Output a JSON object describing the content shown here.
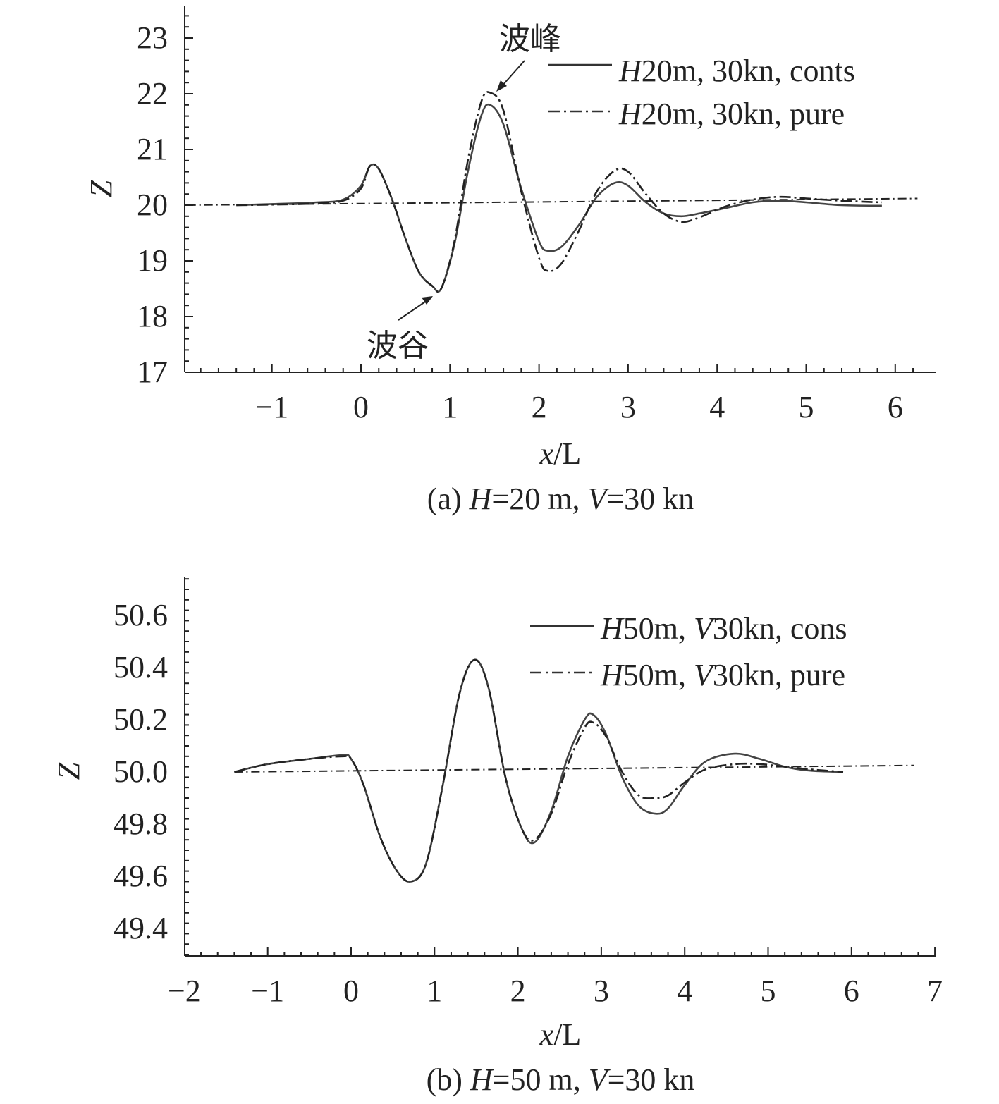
{
  "chart_data": [
    {
      "type": "line",
      "caption": "(a) H=20 m, V=30 kn",
      "caption_prefix": "(a) ",
      "caption_var1": "H",
      "caption_mid": "=20 m, ",
      "caption_var2": "V",
      "caption_suffix": "=30 kn",
      "xlabel_var": "x",
      "xlabel_rest": "/L",
      "ylabel": "Z",
      "xlim": [
        -2,
        6.3
      ],
      "ylim": [
        17,
        23.5
      ],
      "xticks": [
        -1,
        0,
        1,
        2,
        3,
        4,
        5,
        6
      ],
      "xtick_labels": [
        "−1",
        "0",
        "1",
        "2",
        "3",
        "4",
        "5",
        "6"
      ],
      "yticks": [
        17,
        18,
        19,
        20,
        21,
        22,
        23
      ],
      "ytick_labels": [
        "17",
        "18",
        "19",
        "20",
        "21",
        "22",
        "23"
      ],
      "legend": [
        {
          "var": "H",
          "rest": "20m, 30kn, conts",
          "style": "solid"
        },
        {
          "var": "H",
          "rest": "20m, 30kn, pure",
          "style": "dashdot"
        }
      ],
      "annotations": [
        {
          "text": "波峰",
          "x": 1.5,
          "y": 22.05
        },
        {
          "text": "波谷",
          "x": 0.8,
          "y": 18.4
        }
      ],
      "reference_line": {
        "x": [
          -1.95,
          6.25
        ],
        "y": [
          20.0,
          20.12
        ]
      },
      "series": [
        {
          "name": "H20m, 30kn, conts",
          "style": "solid",
          "x": [
            -1.4,
            -1.0,
            -0.5,
            -0.2,
            0.0,
            0.1,
            0.2,
            0.35,
            0.5,
            0.65,
            0.8,
            0.9,
            1.05,
            1.2,
            1.35,
            1.45,
            1.6,
            1.8,
            2.0,
            2.1,
            2.25,
            2.45,
            2.65,
            2.85,
            3.0,
            3.2,
            3.4,
            3.6,
            3.8,
            4.1,
            4.4,
            4.7,
            5.0,
            5.4,
            5.85
          ],
          "values": [
            20.0,
            20.02,
            20.05,
            20.1,
            20.35,
            20.7,
            20.65,
            20.1,
            19.4,
            18.8,
            18.55,
            18.5,
            19.3,
            20.6,
            21.6,
            21.8,
            21.45,
            20.3,
            19.35,
            19.18,
            19.25,
            19.65,
            20.15,
            20.4,
            20.35,
            20.05,
            19.85,
            19.8,
            19.85,
            19.95,
            20.05,
            20.08,
            20.05,
            20.0,
            19.99
          ]
        },
        {
          "name": "H20m, 30kn, pure",
          "style": "dashdot",
          "x": [
            -1.4,
            -1.0,
            -0.5,
            -0.2,
            0.0,
            0.1,
            0.2,
            0.35,
            0.5,
            0.65,
            0.8,
            0.9,
            1.05,
            1.2,
            1.35,
            1.45,
            1.6,
            1.8,
            2.0,
            2.1,
            2.25,
            2.45,
            2.65,
            2.85,
            3.0,
            3.2,
            3.4,
            3.6,
            3.8,
            4.1,
            4.4,
            4.7,
            5.0,
            5.4,
            5.85
          ],
          "values": [
            20.0,
            20.01,
            20.03,
            20.08,
            20.3,
            20.7,
            20.65,
            20.1,
            19.4,
            18.8,
            18.55,
            18.5,
            19.35,
            20.8,
            21.85,
            22.02,
            21.7,
            20.25,
            19.05,
            18.82,
            18.95,
            19.55,
            20.25,
            20.62,
            20.6,
            20.2,
            19.85,
            19.7,
            19.78,
            19.98,
            20.1,
            20.15,
            20.12,
            20.08,
            20.05
          ]
        }
      ]
    },
    {
      "type": "line",
      "caption": "(b) H=50 m, V=30 kn",
      "caption_prefix": "(b) ",
      "caption_var1": "H",
      "caption_mid": "=50 m, ",
      "caption_var2": "V",
      "caption_suffix": "=30 kn",
      "xlabel_var": "x",
      "xlabel_rest": "/L",
      "ylabel": "Z",
      "xlim": [
        -2,
        7
      ],
      "ylim": [
        49.3,
        50.75
      ],
      "xticks": [
        -2,
        -1,
        0,
        1,
        2,
        3,
        4,
        5,
        6,
        7
      ],
      "xtick_labels": [
        "−2",
        "−1",
        "0",
        "1",
        "2",
        "3",
        "4",
        "5",
        "6",
        "7"
      ],
      "yticks": [
        49.4,
        49.6,
        49.8,
        50.0,
        50.2,
        50.4,
        50.6
      ],
      "ytick_labels": [
        "49.4",
        "49.6",
        "49.8",
        "50.0",
        "50.2",
        "50.4",
        "50.6"
      ],
      "legend": [
        {
          "var1": "H",
          "mid": "50m, ",
          "var2": "V",
          "rest": "30kn, cons",
          "style": "solid"
        },
        {
          "var1": "H",
          "mid": "50m, ",
          "var2": "V",
          "rest": "30kn, pure",
          "style": "dashdot"
        }
      ],
      "reference_line": {
        "x": [
          -1.4,
          6.75
        ],
        "y": [
          50.0,
          50.025
        ]
      },
      "series": [
        {
          "name": "H50m, V30kn, cons",
          "style": "solid",
          "x": [
            -1.4,
            -1.0,
            -0.5,
            -0.1,
            0.0,
            0.15,
            0.35,
            0.55,
            0.72,
            0.9,
            1.1,
            1.3,
            1.48,
            1.65,
            1.85,
            2.05,
            2.2,
            2.4,
            2.6,
            2.8,
            2.9,
            3.05,
            3.25,
            3.45,
            3.65,
            3.8,
            4.0,
            4.25,
            4.6,
            4.9,
            5.2,
            5.5,
            5.9
          ],
          "values": [
            50.0,
            50.03,
            50.05,
            50.065,
            50.05,
            49.95,
            49.75,
            49.62,
            49.58,
            49.65,
            49.95,
            50.3,
            50.43,
            50.32,
            49.98,
            49.78,
            49.73,
            49.85,
            50.06,
            50.2,
            50.22,
            50.15,
            49.98,
            49.87,
            49.84,
            49.86,
            49.95,
            50.04,
            50.07,
            50.05,
            50.02,
            50.005,
            50.0
          ]
        },
        {
          "name": "H50m, V30kn, pure",
          "style": "dashdot",
          "x": [
            -1.4,
            -1.0,
            -0.5,
            -0.1,
            0.0,
            0.15,
            0.35,
            0.55,
            0.72,
            0.9,
            1.1,
            1.3,
            1.48,
            1.65,
            1.85,
            2.05,
            2.2,
            2.4,
            2.6,
            2.8,
            2.9,
            3.05,
            3.25,
            3.45,
            3.65,
            3.8,
            4.0,
            4.25,
            4.6,
            4.9,
            5.2,
            5.5,
            5.9
          ],
          "values": [
            50.0,
            50.03,
            50.05,
            50.06,
            50.05,
            49.95,
            49.75,
            49.62,
            49.58,
            49.65,
            49.95,
            50.3,
            50.43,
            50.32,
            49.98,
            49.78,
            49.74,
            49.84,
            50.03,
            50.17,
            50.19,
            50.14,
            50.0,
            49.91,
            49.9,
            49.91,
            49.96,
            50.01,
            50.03,
            50.03,
            50.02,
            50.01,
            50.0
          ]
        }
      ]
    }
  ]
}
